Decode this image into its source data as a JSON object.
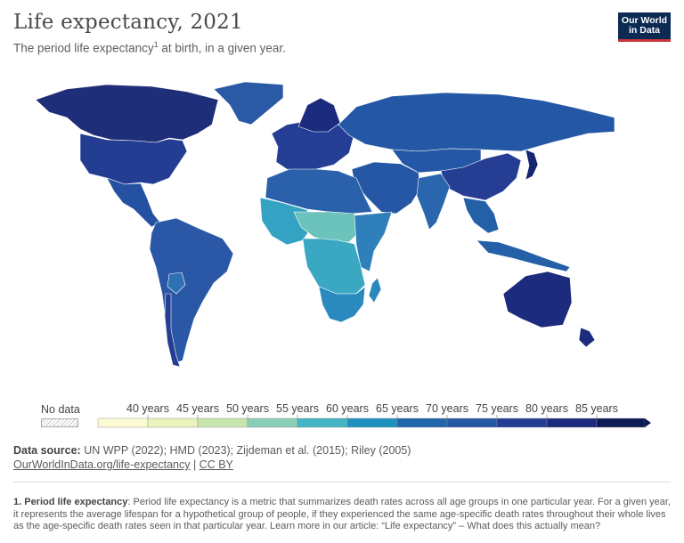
{
  "header": {
    "title": "Life expectancy, 2021",
    "subtitle": "The period life expectancy",
    "subtitle_sup": "1",
    "subtitle_tail": " at birth, in a given year.",
    "logo_line1": "Our World",
    "logo_line2": "in Data"
  },
  "legend": {
    "no_data_label": "No data",
    "ticks": [
      "40 years",
      "45 years",
      "50 years",
      "55 years",
      "60 years",
      "65 years",
      "70 years",
      "75 years",
      "80 years",
      "85 years"
    ],
    "colors": [
      "#fbfbd3",
      "#e8f4bc",
      "#c7e6ae",
      "#89cfb8",
      "#43b5c4",
      "#1f90c0",
      "#2166ac",
      "#2457a5",
      "#253c94",
      "#1c2b7d",
      "#0b1c54"
    ]
  },
  "source": {
    "label": "Data source:",
    "text": " UN WPP (2022); HMD (2023); Zijdeman et al. (2015); Riley (2005)",
    "link1": "OurWorldInData.org/life-expectancy",
    "separator": " | ",
    "link2": "CC BY"
  },
  "footnote": {
    "label": "1. Period life expectancy",
    "text": ": Period life expectancy is a metric that summarizes death rates across all age groups in one particular year. For a given year, it represents the average lifespan for a hypothetical group of people, if they experienced the same age-specific death rates throughout their whole lives as the age-specific death rates seen in that particular year. Learn more in our article: “Life expectancy” – What does this actually mean?"
  },
  "map_colors": {
    "north_america": "#1f2e78",
    "usa": "#233d93",
    "central_america": "#2451a2",
    "south_america": "#2a57a6",
    "bolivia": "#2f72b4",
    "chile": "#253e94",
    "greenland": "#2a5aa6",
    "europe": "#243d95",
    "scandinavia": "#1c2b7d",
    "russia": "#2458a6",
    "middle_east": "#2557a5",
    "north_africa": "#2b60ab",
    "west_africa": "#34a2c2",
    "sahel": "#6cc3bb",
    "central_africa": "#3ba8c3",
    "east_africa": "#2f80ba",
    "southern_africa": "#2a89bd",
    "asia": "#2458a6",
    "china": "#253e94",
    "japan": "#162670",
    "south_asia": "#2a66ad",
    "southeast_asia": "#2460a8",
    "australia": "#1c2b7d",
    "new_zealand": "#1c2b7d",
    "borders": "#ffffff"
  }
}
